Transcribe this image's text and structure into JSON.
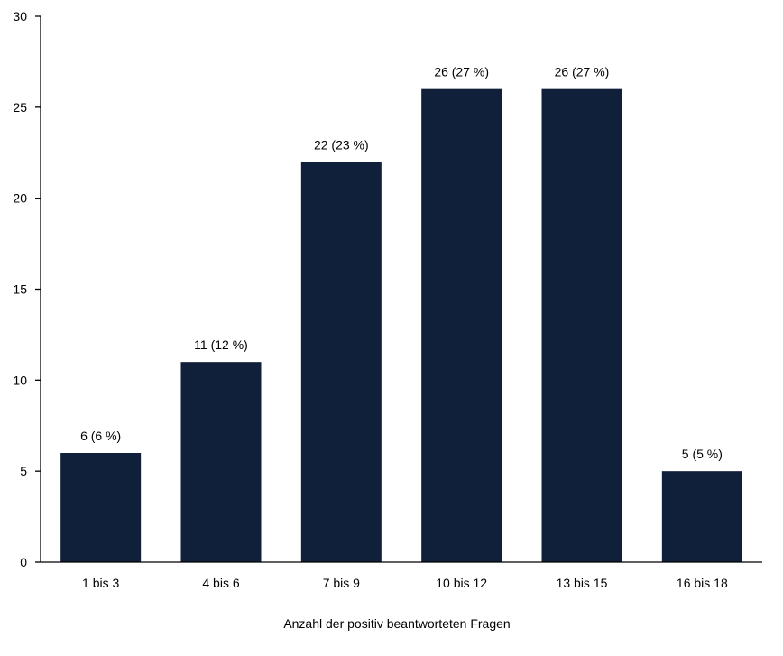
{
  "chart_data": {
    "type": "bar",
    "categories": [
      "1 bis 3",
      "4 bis 6",
      "7 bis 9",
      "10 bis 12",
      "13 bis 15",
      "16 bis 18"
    ],
    "values": [
      6,
      11,
      22,
      26,
      26,
      5
    ],
    "data_labels": [
      "6 (6 %)",
      "11 (12 %)",
      "22 (23 %)",
      "26 (27 %)",
      "26 (27 %)",
      "5 (5 %)"
    ],
    "title": "",
    "xlabel": "Anzahl der positiv beantworteten Fragen",
    "ylabel": "",
    "ylim": [
      0,
      30
    ],
    "yticks": [
      0,
      5,
      10,
      15,
      20,
      25,
      30
    ],
    "grid": false,
    "bar_color": "#101f3a"
  }
}
